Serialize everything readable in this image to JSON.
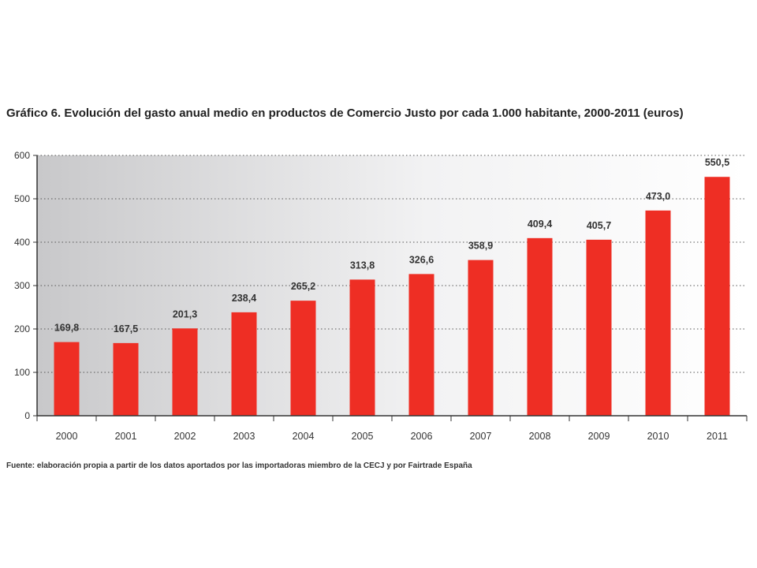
{
  "chart_data": {
    "type": "bar",
    "title": "Gráfico 6. Evolución del gasto anual medio en productos de Comercio Justo por cada 1.000 habitante, 2000-2011 (euros)",
    "xlabel": "",
    "ylabel": "",
    "categories": [
      "2000",
      "2001",
      "2002",
      "2003",
      "2004",
      "2005",
      "2006",
      "2007",
      "2008",
      "2009",
      "2010",
      "2011"
    ],
    "values": [
      169.8,
      167.5,
      201.3,
      238.4,
      265.2,
      313.8,
      326.6,
      358.9,
      409.4,
      405.7,
      473.0,
      550.5
    ],
    "data_labels": [
      "169,8",
      "167,5",
      "201,3",
      "238,4",
      "265,2",
      "313,8",
      "326,6",
      "358,9",
      "409,4",
      "405,7",
      "473,0",
      "550,5"
    ],
    "ylim": [
      0,
      600
    ],
    "yticks": [
      0,
      100,
      200,
      300,
      400,
      500,
      600
    ],
    "grid": true,
    "legend": "none",
    "bar_color": "#ee2e24",
    "source": "Fuente: elaboración propia a partir de los datos aportados por las importadoras miembro de la CECJ y por Fairtrade España"
  }
}
